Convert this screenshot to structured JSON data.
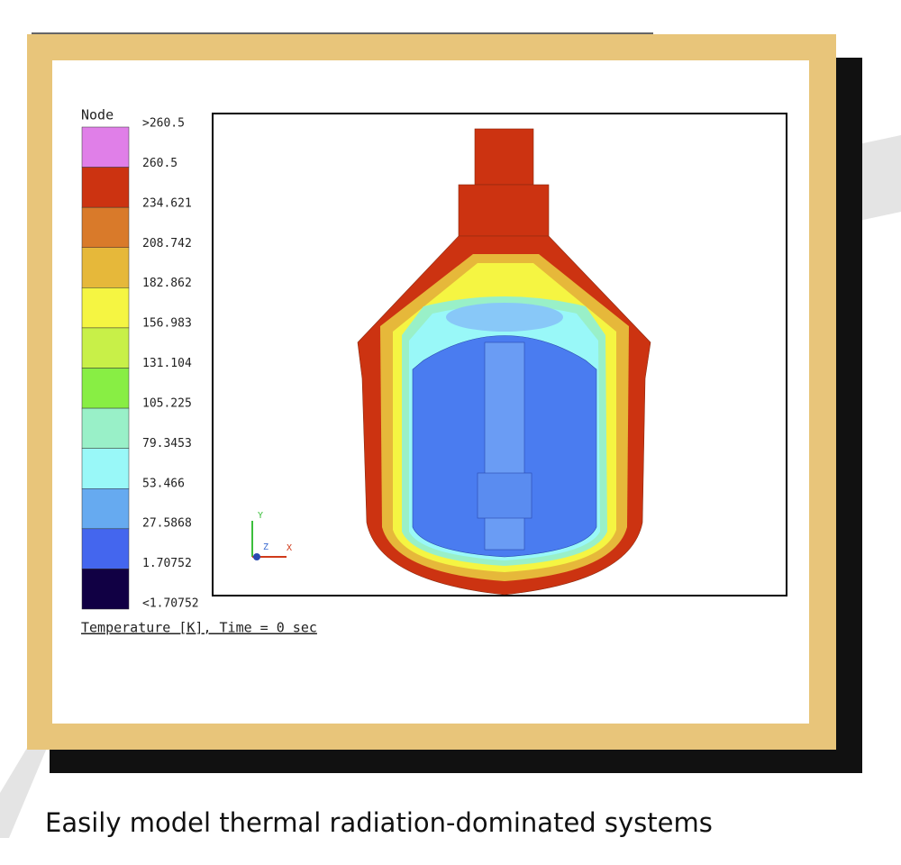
{
  "legend": {
    "title": "Node",
    "labels": [
      ">260.5",
      "260.5",
      "234.621",
      "208.742",
      "182.862",
      "156.983",
      "131.104",
      "105.225",
      "79.3453",
      "53.466",
      "27.5868",
      "1.70752",
      "<1.70752"
    ],
    "colors": [
      "#e07fe8",
      "#cc3311",
      "#d97a2a",
      "#e6b83a",
      "#f5f542",
      "#c8f048",
      "#88ee44",
      "#99f0c8",
      "#99f8f8",
      "#66aaf0",
      "#4466ee",
      "#110044"
    ]
  },
  "triad": {
    "y": "Y",
    "z": "Z",
    "x": "X"
  },
  "caption": "Temperature [K], Time = 0 sec",
  "tagline": "Easily model thermal radiation-dominated systems"
}
